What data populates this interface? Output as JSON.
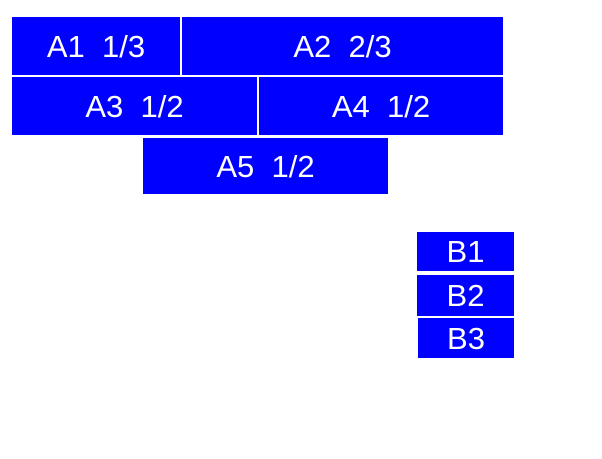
{
  "colors": {
    "box_fill": "#0000ff",
    "box_text": "#ffffff",
    "page_background": "#ffffff"
  },
  "group_a": {
    "a1": {
      "label": "A1  1/3"
    },
    "a2": {
      "label": "A2  2/3"
    },
    "a3": {
      "label": "A3  1/2"
    },
    "a4": {
      "label": "A4  1/2"
    },
    "a5": {
      "label": "A5  1/2"
    }
  },
  "group_b": {
    "b1": {
      "label": "B1"
    },
    "b2": {
      "label": "B2"
    },
    "b3": {
      "label": "B3"
    }
  }
}
